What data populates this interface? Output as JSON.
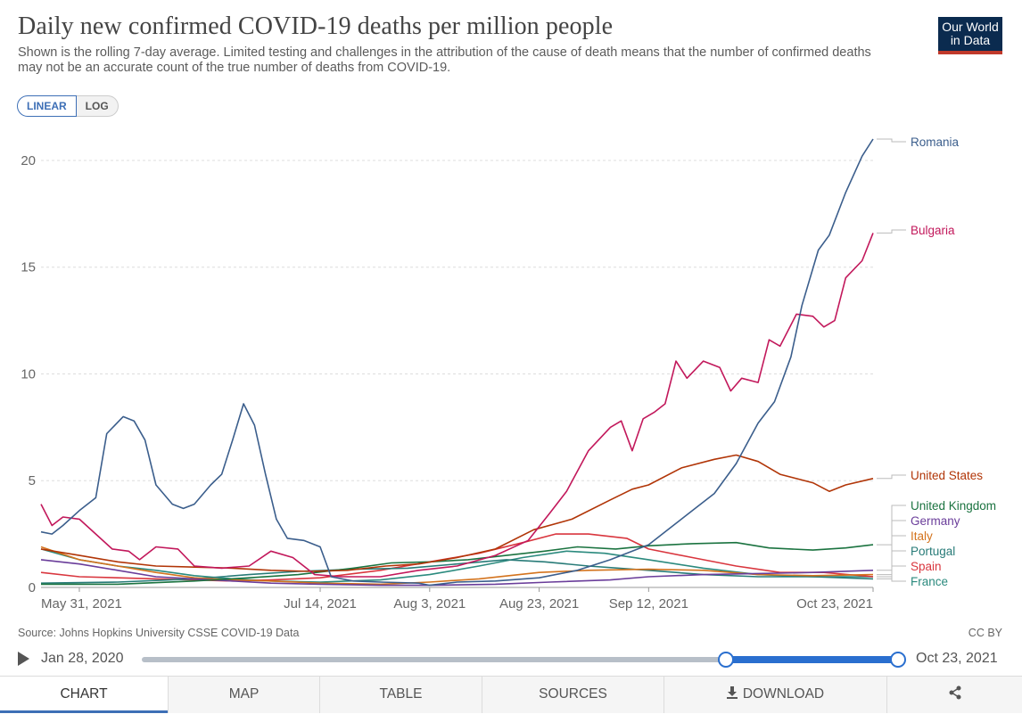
{
  "header": {
    "title": "Daily new confirmed COVID-19 deaths per million people",
    "subtitle": "Shown is the rolling 7-day average. Limited testing and challenges in the attribution of the cause of death means that the number of confirmed deaths may not be an accurate count of the true number of deaths from COVID-19.",
    "logo_line1": "Our World",
    "logo_line2": "in Data",
    "logo_color": "#0b2b4f",
    "logo_accent": "#c0392b"
  },
  "scale_toggle": {
    "linear": "LINEAR",
    "log": "LOG",
    "selected": "LINEAR"
  },
  "chart_data": {
    "type": "line",
    "x_range": [
      "2021-05-24",
      "2021-10-23"
    ],
    "ylim": [
      0,
      21
    ],
    "y_ticks": [
      0,
      5,
      10,
      15,
      20
    ],
    "x_tick_labels": [
      "May 31, 2021",
      "Jul 14, 2021",
      "Aug 3, 2021",
      "Aug 23, 2021",
      "Sep 12, 2021",
      "Oct 23, 2021"
    ],
    "x_tick_dates": [
      "2021-05-31",
      "2021-07-14",
      "2021-08-03",
      "2021-08-23",
      "2021-09-12",
      "2021-10-23"
    ],
    "grid": "horizontal dashed",
    "series": [
      {
        "name": "Romania",
        "color": "#3b5e8c",
        "points": [
          [
            "2021-05-24",
            2.6
          ],
          [
            "2021-05-26",
            2.5
          ],
          [
            "2021-05-28",
            2.9
          ],
          [
            "2021-05-31",
            3.6
          ],
          [
            "2021-06-03",
            4.2
          ],
          [
            "2021-06-05",
            7.2
          ],
          [
            "2021-06-08",
            8.0
          ],
          [
            "2021-06-10",
            7.8
          ],
          [
            "2021-06-12",
            6.9
          ],
          [
            "2021-06-14",
            4.8
          ],
          [
            "2021-06-17",
            3.9
          ],
          [
            "2021-06-19",
            3.7
          ],
          [
            "2021-06-21",
            3.9
          ],
          [
            "2021-06-24",
            4.8
          ],
          [
            "2021-06-26",
            5.3
          ],
          [
            "2021-06-28",
            6.9
          ],
          [
            "2021-06-30",
            8.6
          ],
          [
            "2021-07-02",
            7.6
          ],
          [
            "2021-07-04",
            5.3
          ],
          [
            "2021-07-06",
            3.2
          ],
          [
            "2021-07-08",
            2.3
          ],
          [
            "2021-07-11",
            2.2
          ],
          [
            "2021-07-14",
            1.9
          ],
          [
            "2021-07-16",
            0.5
          ],
          [
            "2021-07-20",
            0.3
          ],
          [
            "2021-07-25",
            0.25
          ],
          [
            "2021-08-01",
            0.2
          ],
          [
            "2021-08-03",
            0.1
          ],
          [
            "2021-08-08",
            0.25
          ],
          [
            "2021-08-15",
            0.3
          ],
          [
            "2021-08-23",
            0.45
          ],
          [
            "2021-08-30",
            0.8
          ],
          [
            "2021-09-05",
            1.3
          ],
          [
            "2021-09-12",
            2.0
          ],
          [
            "2021-09-16",
            2.8
          ],
          [
            "2021-09-20",
            3.6
          ],
          [
            "2021-09-24",
            4.4
          ],
          [
            "2021-09-28",
            5.8
          ],
          [
            "2021-10-02",
            7.7
          ],
          [
            "2021-10-05",
            8.7
          ],
          [
            "2021-10-08",
            10.8
          ],
          [
            "2021-10-10",
            13.2
          ],
          [
            "2021-10-13",
            15.8
          ],
          [
            "2021-10-15",
            16.5
          ],
          [
            "2021-10-18",
            18.5
          ],
          [
            "2021-10-21",
            20.2
          ],
          [
            "2021-10-23",
            21.0
          ]
        ]
      },
      {
        "name": "Bulgaria",
        "color": "#c2185b",
        "points": [
          [
            "2021-05-24",
            3.9
          ],
          [
            "2021-05-26",
            2.9
          ],
          [
            "2021-05-28",
            3.3
          ],
          [
            "2021-05-31",
            3.2
          ],
          [
            "2021-06-03",
            2.5
          ],
          [
            "2021-06-06",
            1.8
          ],
          [
            "2021-06-09",
            1.7
          ],
          [
            "2021-06-11",
            1.3
          ],
          [
            "2021-06-14",
            1.9
          ],
          [
            "2021-06-18",
            1.8
          ],
          [
            "2021-06-21",
            1.0
          ],
          [
            "2021-06-26",
            0.9
          ],
          [
            "2021-07-01",
            1.0
          ],
          [
            "2021-07-05",
            1.7
          ],
          [
            "2021-07-09",
            1.4
          ],
          [
            "2021-07-13",
            0.6
          ],
          [
            "2021-07-18",
            0.5
          ],
          [
            "2021-07-25",
            0.5
          ],
          [
            "2021-08-01",
            0.8
          ],
          [
            "2021-08-08",
            1.0
          ],
          [
            "2021-08-15",
            1.5
          ],
          [
            "2021-08-21",
            2.2
          ],
          [
            "2021-08-25",
            3.5
          ],
          [
            "2021-08-28",
            4.5
          ],
          [
            "2021-09-01",
            6.4
          ],
          [
            "2021-09-05",
            7.5
          ],
          [
            "2021-09-07",
            7.8
          ],
          [
            "2021-09-09",
            6.4
          ],
          [
            "2021-09-11",
            7.9
          ],
          [
            "2021-09-13",
            8.2
          ],
          [
            "2021-09-15",
            8.6
          ],
          [
            "2021-09-17",
            10.6
          ],
          [
            "2021-09-19",
            9.8
          ],
          [
            "2021-09-22",
            10.6
          ],
          [
            "2021-09-25",
            10.3
          ],
          [
            "2021-09-27",
            9.2
          ],
          [
            "2021-09-29",
            9.8
          ],
          [
            "2021-10-02",
            9.6
          ],
          [
            "2021-10-04",
            11.6
          ],
          [
            "2021-10-06",
            11.3
          ],
          [
            "2021-10-09",
            12.8
          ],
          [
            "2021-10-12",
            12.7
          ],
          [
            "2021-10-14",
            12.2
          ],
          [
            "2021-10-16",
            12.5
          ],
          [
            "2021-10-18",
            14.5
          ],
          [
            "2021-10-21",
            15.3
          ],
          [
            "2021-10-23",
            16.6
          ]
        ]
      },
      {
        "name": "United States",
        "color": "#b13507",
        "points": [
          [
            "2021-05-24",
            1.8
          ],
          [
            "2021-05-31",
            1.5
          ],
          [
            "2021-06-07",
            1.2
          ],
          [
            "2021-06-14",
            1.0
          ],
          [
            "2021-06-21",
            0.95
          ],
          [
            "2021-06-28",
            0.9
          ],
          [
            "2021-07-05",
            0.8
          ],
          [
            "2021-07-12",
            0.75
          ],
          [
            "2021-07-19",
            0.8
          ],
          [
            "2021-07-26",
            1.0
          ],
          [
            "2021-08-01",
            1.1
          ],
          [
            "2021-08-08",
            1.4
          ],
          [
            "2021-08-15",
            1.8
          ],
          [
            "2021-08-22",
            2.7
          ],
          [
            "2021-08-29",
            3.2
          ],
          [
            "2021-09-05",
            4.1
          ],
          [
            "2021-09-09",
            4.6
          ],
          [
            "2021-09-12",
            4.8
          ],
          [
            "2021-09-18",
            5.6
          ],
          [
            "2021-09-24",
            6.0
          ],
          [
            "2021-09-28",
            6.2
          ],
          [
            "2021-10-02",
            5.9
          ],
          [
            "2021-10-06",
            5.3
          ],
          [
            "2021-10-12",
            4.9
          ],
          [
            "2021-10-15",
            4.5
          ],
          [
            "2021-10-18",
            4.8
          ],
          [
            "2021-10-23",
            5.1
          ]
        ]
      },
      {
        "name": "United Kingdom",
        "color": "#1b7340",
        "points": [
          [
            "2021-05-24",
            0.15
          ],
          [
            "2021-06-07",
            0.15
          ],
          [
            "2021-06-21",
            0.3
          ],
          [
            "2021-07-01",
            0.45
          ],
          [
            "2021-07-10",
            0.6
          ],
          [
            "2021-07-20",
            0.9
          ],
          [
            "2021-07-27",
            1.15
          ],
          [
            "2021-08-03",
            1.2
          ],
          [
            "2021-08-10",
            1.3
          ],
          [
            "2021-08-17",
            1.5
          ],
          [
            "2021-08-24",
            1.7
          ],
          [
            "2021-08-30",
            1.9
          ],
          [
            "2021-09-06",
            1.8
          ],
          [
            "2021-09-12",
            1.95
          ],
          [
            "2021-09-20",
            2.05
          ],
          [
            "2021-09-28",
            2.1
          ],
          [
            "2021-10-04",
            1.85
          ],
          [
            "2021-10-12",
            1.75
          ],
          [
            "2021-10-18",
            1.85
          ],
          [
            "2021-10-23",
            2.0
          ]
        ]
      },
      {
        "name": "Germany",
        "color": "#6a3d9a",
        "points": [
          [
            "2021-05-24",
            1.3
          ],
          [
            "2021-05-31",
            1.1
          ],
          [
            "2021-06-07",
            0.8
          ],
          [
            "2021-06-14",
            0.5
          ],
          [
            "2021-06-21",
            0.4
          ],
          [
            "2021-06-28",
            0.3
          ],
          [
            "2021-07-05",
            0.2
          ],
          [
            "2021-07-14",
            0.15
          ],
          [
            "2021-07-25",
            0.1
          ],
          [
            "2021-08-03",
            0.1
          ],
          [
            "2021-08-15",
            0.15
          ],
          [
            "2021-08-25",
            0.25
          ],
          [
            "2021-09-05",
            0.35
          ],
          [
            "2021-09-12",
            0.5
          ],
          [
            "2021-09-22",
            0.6
          ],
          [
            "2021-10-02",
            0.65
          ],
          [
            "2021-10-12",
            0.7
          ],
          [
            "2021-10-23",
            0.8
          ]
        ]
      },
      {
        "name": "Italy",
        "color": "#d3731d",
        "points": [
          [
            "2021-05-24",
            1.9
          ],
          [
            "2021-05-31",
            1.3
          ],
          [
            "2021-06-07",
            1.0
          ],
          [
            "2021-06-14",
            0.7
          ],
          [
            "2021-06-21",
            0.45
          ],
          [
            "2021-06-28",
            0.35
          ],
          [
            "2021-07-05",
            0.3
          ],
          [
            "2021-07-14",
            0.2
          ],
          [
            "2021-07-25",
            0.15
          ],
          [
            "2021-08-03",
            0.25
          ],
          [
            "2021-08-12",
            0.4
          ],
          [
            "2021-08-23",
            0.7
          ],
          [
            "2021-09-01",
            0.8
          ],
          [
            "2021-09-12",
            0.85
          ],
          [
            "2021-09-22",
            0.8
          ],
          [
            "2021-10-02",
            0.6
          ],
          [
            "2021-10-12",
            0.55
          ],
          [
            "2021-10-23",
            0.6
          ]
        ]
      },
      {
        "name": "Portugal",
        "color": "#287b78",
        "points": [
          [
            "2021-05-24",
            0.2
          ],
          [
            "2021-06-07",
            0.25
          ],
          [
            "2021-06-21",
            0.4
          ],
          [
            "2021-07-01",
            0.6
          ],
          [
            "2021-07-10",
            0.75
          ],
          [
            "2021-07-20",
            0.85
          ],
          [
            "2021-07-30",
            0.9
          ],
          [
            "2021-08-08",
            1.1
          ],
          [
            "2021-08-17",
            1.3
          ],
          [
            "2021-08-24",
            1.2
          ],
          [
            "2021-09-01",
            1.0
          ],
          [
            "2021-09-12",
            0.8
          ],
          [
            "2021-09-22",
            0.6
          ],
          [
            "2021-10-02",
            0.5
          ],
          [
            "2021-10-12",
            0.5
          ],
          [
            "2021-10-23",
            0.4
          ]
        ]
      },
      {
        "name": "Spain",
        "color": "#d9363e",
        "points": [
          [
            "2021-05-24",
            0.7
          ],
          [
            "2021-05-31",
            0.5
          ],
          [
            "2021-06-07",
            0.45
          ],
          [
            "2021-06-14",
            0.4
          ],
          [
            "2021-06-21",
            0.35
          ],
          [
            "2021-06-28",
            0.3
          ],
          [
            "2021-07-05",
            0.35
          ],
          [
            "2021-07-14",
            0.45
          ],
          [
            "2021-07-25",
            0.8
          ],
          [
            "2021-08-03",
            1.2
          ],
          [
            "2021-08-12",
            1.6
          ],
          [
            "2021-08-20",
            2.1
          ],
          [
            "2021-08-26",
            2.5
          ],
          [
            "2021-09-01",
            2.5
          ],
          [
            "2021-09-08",
            2.3
          ],
          [
            "2021-09-12",
            1.8
          ],
          [
            "2021-09-20",
            1.4
          ],
          [
            "2021-09-28",
            1.0
          ],
          [
            "2021-10-06",
            0.7
          ],
          [
            "2021-10-14",
            0.7
          ],
          [
            "2021-10-23",
            0.5
          ]
        ]
      },
      {
        "name": "France",
        "color": "#2b8a7e",
        "points": [
          [
            "2021-05-24",
            1.8
          ],
          [
            "2021-05-31",
            1.3
          ],
          [
            "2021-06-07",
            1.0
          ],
          [
            "2021-06-14",
            0.8
          ],
          [
            "2021-06-21",
            0.55
          ],
          [
            "2021-06-28",
            0.4
          ],
          [
            "2021-07-05",
            0.3
          ],
          [
            "2021-07-14",
            0.25
          ],
          [
            "2021-07-25",
            0.35
          ],
          [
            "2021-08-03",
            0.6
          ],
          [
            "2021-08-12",
            1.0
          ],
          [
            "2021-08-20",
            1.4
          ],
          [
            "2021-08-28",
            1.7
          ],
          [
            "2021-09-04",
            1.6
          ],
          [
            "2021-09-12",
            1.3
          ],
          [
            "2021-09-22",
            0.9
          ],
          [
            "2021-10-02",
            0.6
          ],
          [
            "2021-10-12",
            0.5
          ],
          [
            "2021-10-23",
            0.5
          ]
        ]
      }
    ]
  },
  "source": "Source: Johns Hopkins University CSSE COVID-19 Data",
  "license": "CC BY",
  "timeline": {
    "start": "Jan 28, 2020",
    "end": "Oct 23, 2021"
  },
  "tabs": {
    "chart": "CHART",
    "map": "MAP",
    "table": "TABLE",
    "sources": "SOURCES",
    "download": "DOWNLOAD"
  }
}
